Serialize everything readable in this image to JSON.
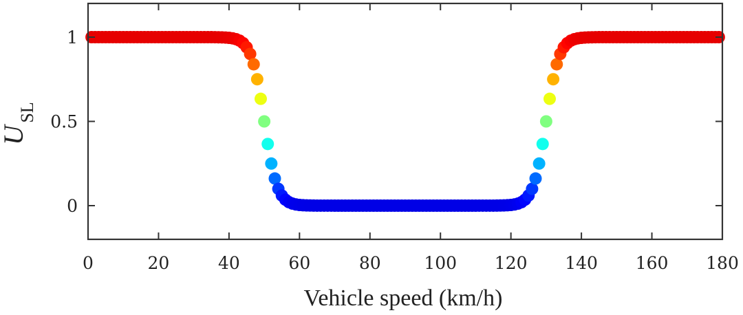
{
  "chart_data": {
    "type": "scatter",
    "title": "",
    "xlabel": "Vehicle speed (km/h)",
    "ylabel_main": "U",
    "ylabel_sub": "SL",
    "xlim": [
      0,
      180
    ],
    "ylim": [
      -0.2,
      1.2
    ],
    "xticks": [
      0,
      20,
      40,
      60,
      80,
      100,
      120,
      140,
      160,
      180
    ],
    "xtick_labels": [
      "0",
      "20",
      "40",
      "60",
      "80",
      "100",
      "120",
      "140",
      "160",
      "180"
    ],
    "yticks": [
      0,
      0.5,
      1
    ],
    "ytick_labels": [
      "0",
      "0.5",
      "1"
    ],
    "grid": false,
    "colormap": "jet (colored by U_SL value)",
    "curve": {
      "description": "U_SL = 1 for v < ~40, sigmoid drop centered at 50 km/h to 0, flat 0 from ~57 to ~122, sigmoid rise centered at 130 km/h back to 1 until 180",
      "x_start": 1,
      "x_end": 179,
      "x_step": 1,
      "low_transition_center": 50,
      "high_transition_center": 130,
      "transition_steepness": 0.55
    },
    "series": [
      {
        "name": "U_SL",
        "points_sample": [
          [
            0,
            1
          ],
          [
            20,
            1
          ],
          [
            40,
            0.996
          ],
          [
            45,
            0.94
          ],
          [
            48,
            0.75
          ],
          [
            50,
            0.5
          ],
          [
            52,
            0.25
          ],
          [
            55,
            0.06
          ],
          [
            60,
            0.004
          ],
          [
            80,
            0
          ],
          [
            100,
            0
          ],
          [
            120,
            0.004
          ],
          [
            125,
            0.06
          ],
          [
            128,
            0.25
          ],
          [
            130,
            0.5
          ],
          [
            132,
            0.75
          ],
          [
            135,
            0.94
          ],
          [
            140,
            0.996
          ],
          [
            160,
            1
          ],
          [
            180,
            1
          ]
        ]
      }
    ]
  }
}
